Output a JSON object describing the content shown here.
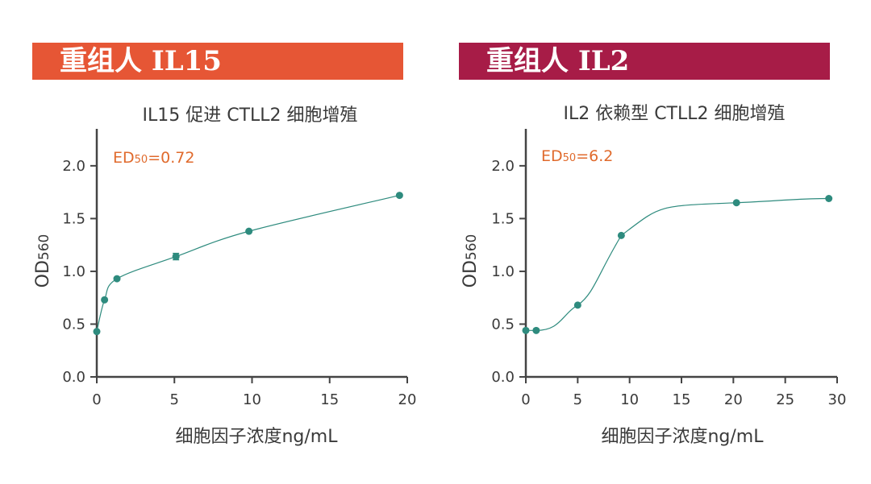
{
  "colors": {
    "banner_left": "#e65635",
    "banner_right": "#a71c47",
    "series": "#2e8b7e",
    "axis": "#444444",
    "ed_text": "#e06a2c"
  },
  "chart_data": [
    {
      "type": "line",
      "banner": "重组人 IL15",
      "title": "IL15 促进 CTLL2 细胞增殖",
      "xlabel": "细胞因子浓度ng/mL",
      "ylabel": "OD",
      "ylabel_sub": "560",
      "ed_label": "ED",
      "ed_sub": "50",
      "ed_value": "=0.72",
      "xlim": [
        0,
        20
      ],
      "ylim": [
        0,
        2.35
      ],
      "xticks": [
        "0",
        "5",
        "10",
        "15",
        "20"
      ],
      "yticks": [
        "0.0",
        "0.5",
        "1.0",
        "1.5",
        "2.0"
      ],
      "series": [
        {
          "x": [
            0,
            0.5,
            1.3,
            5.1,
            9.8,
            19.5
          ],
          "y": [
            0.43,
            0.73,
            0.93,
            1.14,
            1.38,
            1.72
          ],
          "errors": [
            0,
            0,
            0,
            0.03,
            0,
            0
          ]
        }
      ],
      "grid": false
    },
    {
      "type": "line",
      "banner": "重组人 IL2",
      "title": "IL2 依赖型 CTLL2 细胞增殖",
      "xlabel": "细胞因子浓度ng/mL",
      "ylabel": "OD",
      "ylabel_sub": "560",
      "ed_label": "ED",
      "ed_sub": "50",
      "ed_value": "=6.2",
      "xlim": [
        0,
        30
      ],
      "ylim": [
        0,
        2.35
      ],
      "xticks": [
        "0",
        "5",
        "10",
        "15",
        "20",
        "25",
        "30"
      ],
      "yticks": [
        "0.0",
        "0.5",
        "1.0",
        "1.5",
        "2.0"
      ],
      "series": [
        {
          "x": [
            0,
            1,
            5,
            9.2,
            20.3,
            29.2
          ],
          "y": [
            0.44,
            0.44,
            0.68,
            1.34,
            1.65,
            1.69
          ],
          "errors": [
            0,
            0,
            0,
            0,
            0,
            0
          ]
        }
      ],
      "grid": false
    }
  ]
}
